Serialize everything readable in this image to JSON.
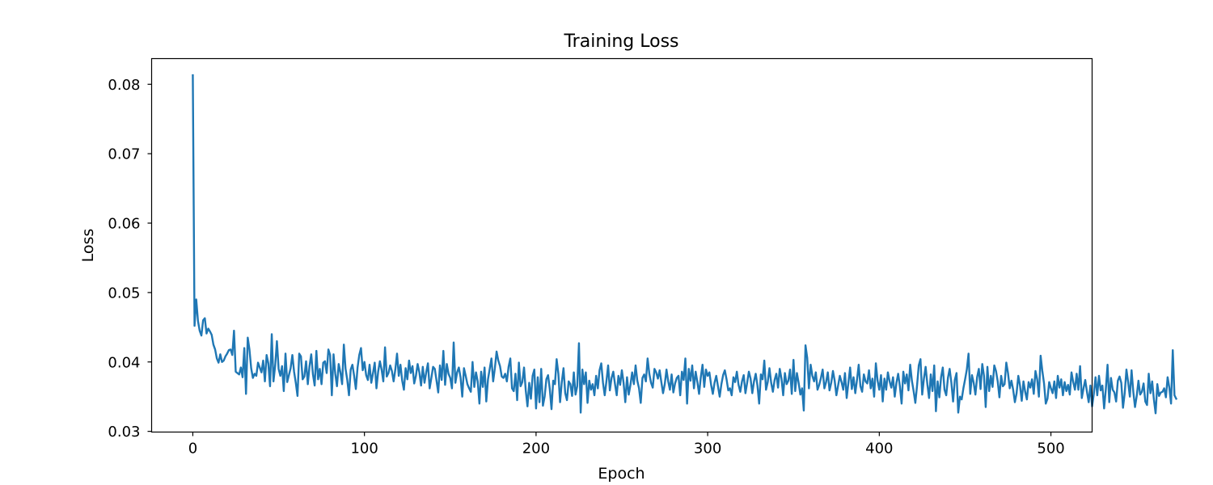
{
  "chart_data": {
    "type": "line",
    "title": "Training Loss",
    "xlabel": "Epoch",
    "ylabel": "Loss",
    "xlim": [
      -24,
      524
    ],
    "ylim": [
      0.0299,
      0.0837
    ],
    "xticks": [
      0,
      100,
      200,
      300,
      400,
      500
    ],
    "yticks": [
      0.03,
      0.04,
      0.05,
      0.06,
      0.07,
      0.08
    ],
    "xtick_labels": [
      "0",
      "100",
      "200",
      "300",
      "400",
      "500"
    ],
    "ytick_labels": [
      "0.03",
      "0.04",
      "0.05",
      "0.06",
      "0.07",
      "0.08"
    ],
    "grid": false,
    "legend": "none",
    "series_color": "#1f77b4",
    "series": [
      {
        "x_start": 0,
        "x_step": 1,
        "values": [
          0.0813,
          0.0452,
          0.049,
          0.0459,
          0.0445,
          0.0438,
          0.046,
          0.0463,
          0.0441,
          0.0448,
          0.0444,
          0.0439,
          0.0425,
          0.0418,
          0.0405,
          0.0399,
          0.0411,
          0.04,
          0.0402,
          0.0408,
          0.0412,
          0.0417,
          0.0418,
          0.041,
          0.0445,
          0.0386,
          0.0384,
          0.0382,
          0.0392,
          0.0378,
          0.042,
          0.0354,
          0.0435,
          0.0418,
          0.0391,
          0.0377,
          0.0383,
          0.038,
          0.0399,
          0.0392,
          0.0385,
          0.0402,
          0.0372,
          0.041,
          0.0398,
          0.0365,
          0.044,
          0.0372,
          0.0395,
          0.043,
          0.039,
          0.038,
          0.0394,
          0.0358,
          0.0412,
          0.0371,
          0.0381,
          0.0391,
          0.041,
          0.0386,
          0.037,
          0.0351,
          0.0412,
          0.0408,
          0.0375,
          0.0379,
          0.0401,
          0.0368,
          0.0394,
          0.0411,
          0.0382,
          0.0366,
          0.0416,
          0.0375,
          0.039,
          0.0368,
          0.0399,
          0.0401,
          0.0384,
          0.0418,
          0.041,
          0.0352,
          0.0411,
          0.0383,
          0.0365,
          0.0397,
          0.0385,
          0.0368,
          0.0425,
          0.039,
          0.0374,
          0.0352,
          0.0389,
          0.0396,
          0.038,
          0.0361,
          0.0392,
          0.041,
          0.042,
          0.0388,
          0.04,
          0.0381,
          0.0374,
          0.0396,
          0.037,
          0.0384,
          0.0399,
          0.0362,
          0.0386,
          0.0401,
          0.0389,
          0.0372,
          0.0421,
          0.0379,
          0.0384,
          0.0395,
          0.0387,
          0.0372,
          0.0389,
          0.0412,
          0.038,
          0.0396,
          0.0373,
          0.036,
          0.0391,
          0.0375,
          0.0402,
          0.0384,
          0.0394,
          0.0369,
          0.038,
          0.0397,
          0.0385,
          0.0366,
          0.0393,
          0.037,
          0.0385,
          0.0398,
          0.0362,
          0.0377,
          0.0393,
          0.039,
          0.0373,
          0.0356,
          0.0395,
          0.0374,
          0.0416,
          0.0367,
          0.0397,
          0.0383,
          0.0377,
          0.0362,
          0.0428,
          0.037,
          0.0385,
          0.0392,
          0.0378,
          0.035,
          0.0391,
          0.038,
          0.0368,
          0.0362,
          0.0357,
          0.04,
          0.0364,
          0.0385,
          0.0372,
          0.034,
          0.0386,
          0.0364,
          0.0392,
          0.0343,
          0.0375,
          0.039,
          0.0405,
          0.0372,
          0.0391,
          0.0415,
          0.0402,
          0.0394,
          0.0379,
          0.0377,
          0.0383,
          0.0372,
          0.0393,
          0.0405,
          0.0362,
          0.0358,
          0.0383,
          0.0345,
          0.0399,
          0.0365,
          0.0371,
          0.0392,
          0.0359,
          0.0336,
          0.037,
          0.0347,
          0.038,
          0.0389,
          0.0333,
          0.0378,
          0.0342,
          0.039,
          0.0337,
          0.035,
          0.0375,
          0.0381,
          0.0361,
          0.0332,
          0.0373,
          0.0368,
          0.0404,
          0.0383,
          0.0342,
          0.0371,
          0.0391,
          0.0355,
          0.0345,
          0.0372,
          0.0368,
          0.0351,
          0.0385,
          0.0353,
          0.0365,
          0.0427,
          0.0327,
          0.0389,
          0.0368,
          0.0385,
          0.0341,
          0.0373,
          0.036,
          0.0368,
          0.0352,
          0.038,
          0.0362,
          0.0388,
          0.0398,
          0.037,
          0.0352,
          0.0372,
          0.0395,
          0.0359,
          0.0377,
          0.0386,
          0.0368,
          0.0352,
          0.038,
          0.0367,
          0.0388,
          0.037,
          0.0342,
          0.0378,
          0.0353,
          0.0367,
          0.0385,
          0.0368,
          0.0395,
          0.0373,
          0.0362,
          0.0341,
          0.0377,
          0.0382,
          0.0372,
          0.0405,
          0.0383,
          0.037,
          0.0363,
          0.039,
          0.0385,
          0.0376,
          0.0388,
          0.0371,
          0.0355,
          0.0368,
          0.0389,
          0.0372,
          0.036,
          0.0382,
          0.0356,
          0.0369,
          0.0377,
          0.038,
          0.0352,
          0.0386,
          0.0374,
          0.0405,
          0.034,
          0.039,
          0.0373,
          0.0395,
          0.0362,
          0.0386,
          0.0371,
          0.0354,
          0.0378,
          0.0396,
          0.0364,
          0.0389,
          0.038,
          0.0385,
          0.0367,
          0.0354,
          0.037,
          0.038,
          0.0365,
          0.035,
          0.0368,
          0.0381,
          0.0388,
          0.0375,
          0.0359,
          0.0362,
          0.0352,
          0.0378,
          0.0371,
          0.0386,
          0.0367,
          0.0357,
          0.0372,
          0.0381,
          0.0355,
          0.037,
          0.0386,
          0.0376,
          0.0355,
          0.0372,
          0.0383,
          0.0366,
          0.034,
          0.0382,
          0.0375,
          0.0402,
          0.036,
          0.0371,
          0.0391,
          0.037,
          0.0357,
          0.0374,
          0.0383,
          0.0363,
          0.039,
          0.0376,
          0.0352,
          0.0384,
          0.0368,
          0.0373,
          0.0389,
          0.0354,
          0.0403,
          0.0358,
          0.0384,
          0.037,
          0.0353,
          0.0362,
          0.033,
          0.0424,
          0.0406,
          0.0362,
          0.0396,
          0.038,
          0.0372,
          0.0385,
          0.036,
          0.0367,
          0.0377,
          0.0389,
          0.0362,
          0.0371,
          0.0385,
          0.0359,
          0.037,
          0.0387,
          0.0373,
          0.0352,
          0.0366,
          0.038,
          0.0371,
          0.036,
          0.0384,
          0.0348,
          0.037,
          0.0392,
          0.0361,
          0.0378,
          0.0355,
          0.0374,
          0.0396,
          0.0365,
          0.0357,
          0.0382,
          0.0372,
          0.0369,
          0.0388,
          0.0362,
          0.0376,
          0.035,
          0.0398,
          0.0373,
          0.036,
          0.0381,
          0.0343,
          0.0376,
          0.036,
          0.0385,
          0.0372,
          0.0363,
          0.0378,
          0.035,
          0.037,
          0.0383,
          0.0365,
          0.034,
          0.0386,
          0.0369,
          0.0382,
          0.0359,
          0.0396,
          0.0373,
          0.0358,
          0.0341,
          0.0366,
          0.0395,
          0.0404,
          0.0353,
          0.0376,
          0.0393,
          0.0368,
          0.0348,
          0.0382,
          0.0358,
          0.0395,
          0.0329,
          0.0372,
          0.0349,
          0.0378,
          0.0392,
          0.036,
          0.0352,
          0.0377,
          0.039,
          0.037,
          0.0343,
          0.0374,
          0.0384,
          0.0327,
          0.035,
          0.0346,
          0.0362,
          0.0375,
          0.0389,
          0.0412,
          0.0354,
          0.0381,
          0.037,
          0.0353,
          0.0378,
          0.039,
          0.0361,
          0.0397,
          0.038,
          0.0335,
          0.0393,
          0.0358,
          0.038,
          0.0364,
          0.0395,
          0.0387,
          0.0372,
          0.0349,
          0.038,
          0.0365,
          0.0368,
          0.0399,
          0.0384,
          0.0362,
          0.0373,
          0.036,
          0.0342,
          0.0355,
          0.038,
          0.0366,
          0.0344,
          0.0372,
          0.0357,
          0.0346,
          0.0371,
          0.0363,
          0.0375,
          0.0354,
          0.0387,
          0.0375,
          0.035,
          0.0409,
          0.0387,
          0.0369,
          0.034,
          0.0347,
          0.0371,
          0.0362,
          0.0355,
          0.0372,
          0.0348,
          0.038,
          0.0363,
          0.0375,
          0.0352,
          0.0371,
          0.0358,
          0.0367,
          0.0353,
          0.0385,
          0.0371,
          0.036,
          0.0383,
          0.036,
          0.0394,
          0.0348,
          0.0362,
          0.0374,
          0.0357,
          0.0342,
          0.0366,
          0.0336,
          0.0354,
          0.0378,
          0.0352,
          0.038,
          0.0359,
          0.0366,
          0.0333,
          0.0361,
          0.0396,
          0.0342,
          0.0377,
          0.036,
          0.0356,
          0.0343,
          0.0373,
          0.0379,
          0.037,
          0.0334,
          0.0355,
          0.0389,
          0.0371,
          0.035,
          0.0388,
          0.0357,
          0.0335,
          0.0351,
          0.0373,
          0.0353,
          0.0357,
          0.0369,
          0.0343,
          0.0338,
          0.0383,
          0.0355,
          0.0372,
          0.0346,
          0.0326,
          0.0368,
          0.0351,
          0.0356,
          0.0357,
          0.0362,
          0.0349,
          0.0378,
          0.0363,
          0.034,
          0.0417,
          0.0352,
          0.0347
        ]
      }
    ]
  }
}
